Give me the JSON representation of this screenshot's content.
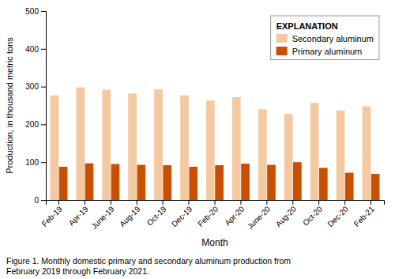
{
  "chart_data": {
    "type": "bar",
    "categories": [
      "Feb-19",
      "Apr-19",
      "June-19",
      "Aug-19",
      "Oct-19",
      "Dec-19",
      "Feb-20",
      "Apr-20",
      "June-20",
      "Aug-20",
      "Oct-20",
      "Dec-20",
      "Feb-21"
    ],
    "series": [
      {
        "name": "Secondary aluminum",
        "color": "#f5c9a0",
        "values": [
          277,
          298,
          292,
          282,
          293,
          277,
          263,
          272,
          240,
          228,
          257,
          237,
          248
        ]
      },
      {
        "name": "Primary aluminum",
        "color": "#c85000",
        "values": [
          88,
          97,
          95,
          93,
          92,
          88,
          92,
          96,
          93,
          100,
          85,
          72,
          69
        ]
      }
    ],
    "ylim": [
      0,
      500
    ],
    "yticks": [
      0,
      100,
      200,
      300,
      400,
      500
    ],
    "x_label": "Month",
    "y_label": "Production, in thousand metric tons",
    "legend_title": "EXPLANATION",
    "legend": "upper right",
    "grid": false,
    "caption": "Figure 1. Monthly domestic primary and secondary aluminum production from\nFebruary 2019 through February 2021."
  }
}
